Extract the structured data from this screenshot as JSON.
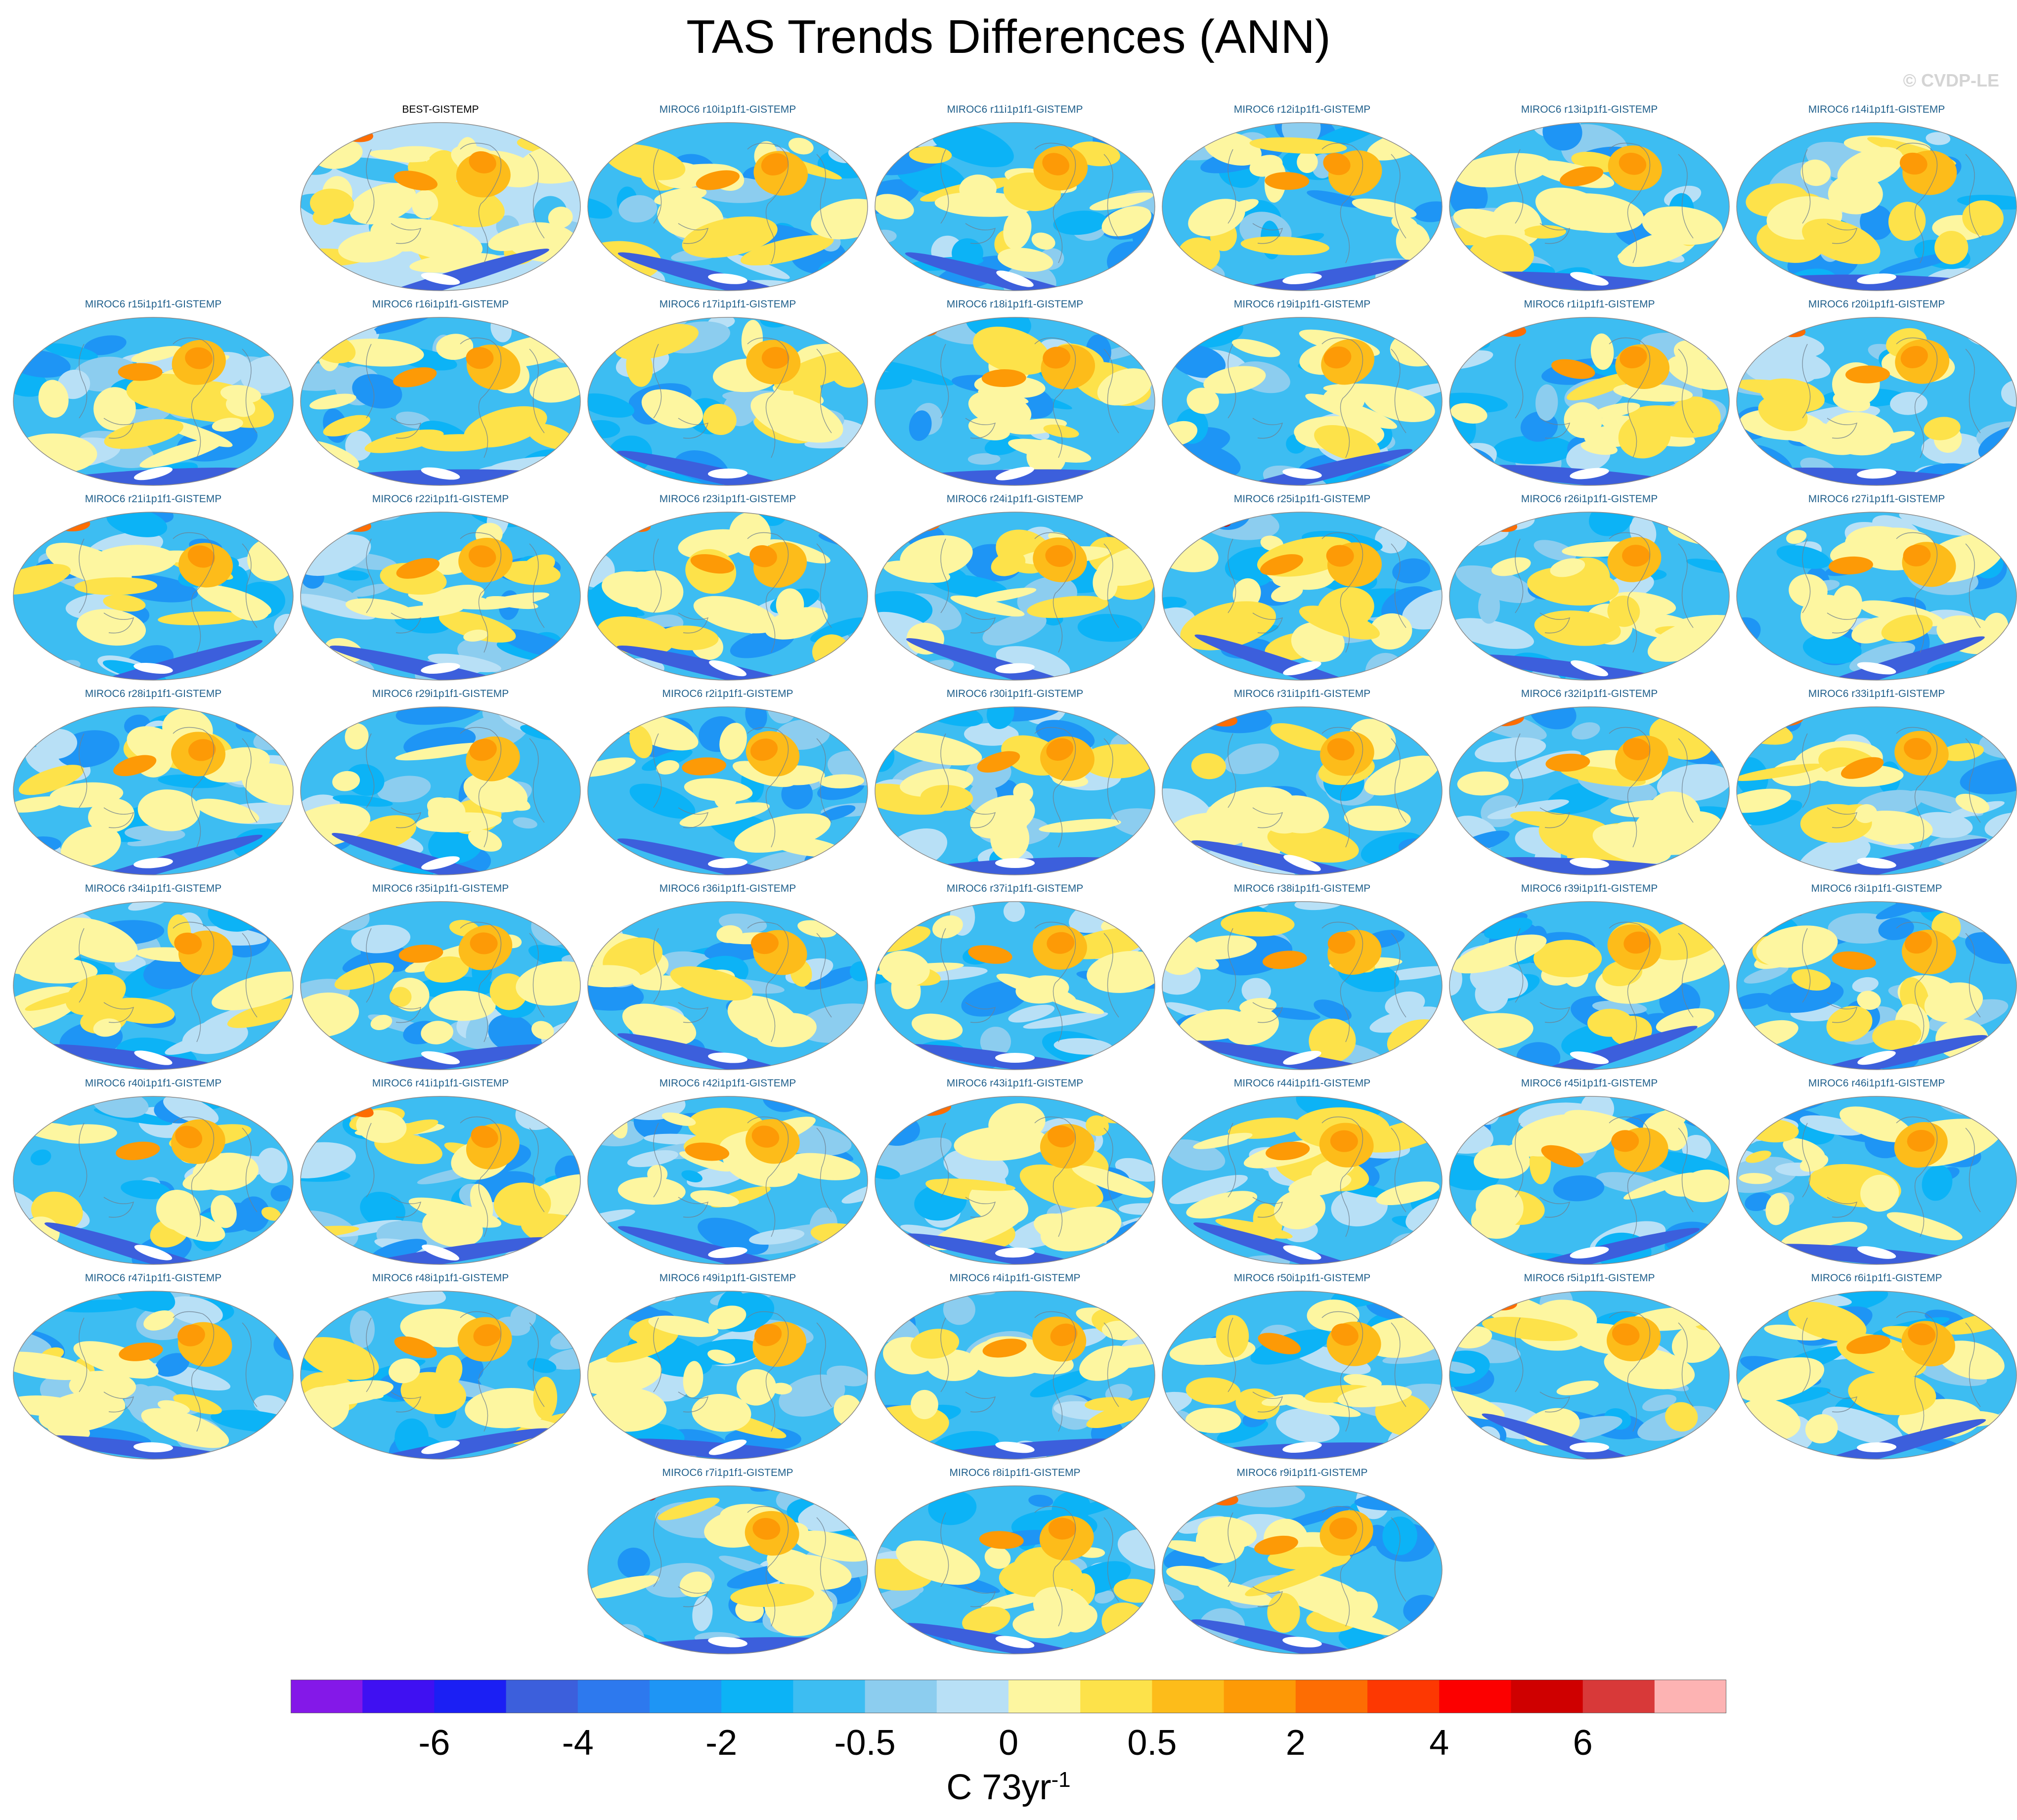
{
  "title": "TAS Trends Differences (ANN)",
  "watermark": "© CVDP-LE",
  "panels": [
    {
      "label": "BEST-GISTEMP",
      "type": "observation"
    },
    {
      "label": "MIROC6 r10i1p1f1-GISTEMP"
    },
    {
      "label": "MIROC6 r11i1p1f1-GISTEMP"
    },
    {
      "label": "MIROC6 r12i1p1f1-GISTEMP"
    },
    {
      "label": "MIROC6 r13i1p1f1-GISTEMP"
    },
    {
      "label": "MIROC6 r14i1p1f1-GISTEMP"
    },
    {
      "label": "MIROC6 r15i1p1f1-GISTEMP"
    },
    {
      "label": "MIROC6 r16i1p1f1-GISTEMP"
    },
    {
      "label": "MIROC6 r17i1p1f1-GISTEMP"
    },
    {
      "label": "MIROC6 r18i1p1f1-GISTEMP"
    },
    {
      "label": "MIROC6 r19i1p1f1-GISTEMP"
    },
    {
      "label": "MIROC6 r1i1p1f1-GISTEMP"
    },
    {
      "label": "MIROC6 r20i1p1f1-GISTEMP"
    },
    {
      "label": "MIROC6 r21i1p1f1-GISTEMP"
    },
    {
      "label": "MIROC6 r22i1p1f1-GISTEMP"
    },
    {
      "label": "MIROC6 r23i1p1f1-GISTEMP"
    },
    {
      "label": "MIROC6 r24i1p1f1-GISTEMP"
    },
    {
      "label": "MIROC6 r25i1p1f1-GISTEMP"
    },
    {
      "label": "MIROC6 r26i1p1f1-GISTEMP"
    },
    {
      "label": "MIROC6 r27i1p1f1-GISTEMP"
    },
    {
      "label": "MIROC6 r28i1p1f1-GISTEMP"
    },
    {
      "label": "MIROC6 r29i1p1f1-GISTEMP"
    },
    {
      "label": "MIROC6 r2i1p1f1-GISTEMP"
    },
    {
      "label": "MIROC6 r30i1p1f1-GISTEMP"
    },
    {
      "label": "MIROC6 r31i1p1f1-GISTEMP"
    },
    {
      "label": "MIROC6 r32i1p1f1-GISTEMP"
    },
    {
      "label": "MIROC6 r33i1p1f1-GISTEMP"
    },
    {
      "label": "MIROC6 r34i1p1f1-GISTEMP"
    },
    {
      "label": "MIROC6 r35i1p1f1-GISTEMP"
    },
    {
      "label": "MIROC6 r36i1p1f1-GISTEMP"
    },
    {
      "label": "MIROC6 r37i1p1f1-GISTEMP"
    },
    {
      "label": "MIROC6 r38i1p1f1-GISTEMP"
    },
    {
      "label": "MIROC6 r39i1p1f1-GISTEMP"
    },
    {
      "label": "MIROC6 r3i1p1f1-GISTEMP"
    },
    {
      "label": "MIROC6 r40i1p1f1-GISTEMP"
    },
    {
      "label": "MIROC6 r41i1p1f1-GISTEMP"
    },
    {
      "label": "MIROC6 r42i1p1f1-GISTEMP"
    },
    {
      "label": "MIROC6 r43i1p1f1-GISTEMP"
    },
    {
      "label": "MIROC6 r44i1p1f1-GISTEMP"
    },
    {
      "label": "MIROC6 r45i1p1f1-GISTEMP"
    },
    {
      "label": "MIROC6 r46i1p1f1-GISTEMP"
    },
    {
      "label": "MIROC6 r47i1p1f1-GISTEMP"
    },
    {
      "label": "MIROC6 r48i1p1f1-GISTEMP"
    },
    {
      "label": "MIROC6 r49i1p1f1-GISTEMP"
    },
    {
      "label": "MIROC6 r4i1p1f1-GISTEMP"
    },
    {
      "label": "MIROC6 r50i1p1f1-GISTEMP"
    },
    {
      "label": "MIROC6 r5i1p1f1-GISTEMP"
    },
    {
      "label": "MIROC6 r6i1p1f1-GISTEMP"
    },
    {
      "label": "MIROC6 r7i1p1f1-GISTEMP"
    },
    {
      "label": "MIROC6 r8i1p1f1-GISTEMP"
    },
    {
      "label": "MIROC6 r9i1p1f1-GISTEMP"
    }
  ],
  "colorbar": {
    "colors": [
      "#8418e8",
      "#3f10f2",
      "#1b1ff4",
      "#3c5fdc",
      "#2d79ee",
      "#1e95f5",
      "#0cb3f6",
      "#3dbdf2",
      "#8ccdef",
      "#b8e0f6",
      "#fdf6a0",
      "#fde24a",
      "#fdbc1a",
      "#fd9a06",
      "#fd6d03",
      "#fd3802",
      "#fc0000",
      "#cf0000",
      "#d83939",
      "#fdb3b3"
    ],
    "tick_labels": [
      "-6",
      "-4",
      "-2",
      "-0.5",
      "0",
      "0.5",
      "2",
      "4",
      "6"
    ],
    "unit_base": "C 73yr",
    "unit_exponent": "-1"
  }
}
